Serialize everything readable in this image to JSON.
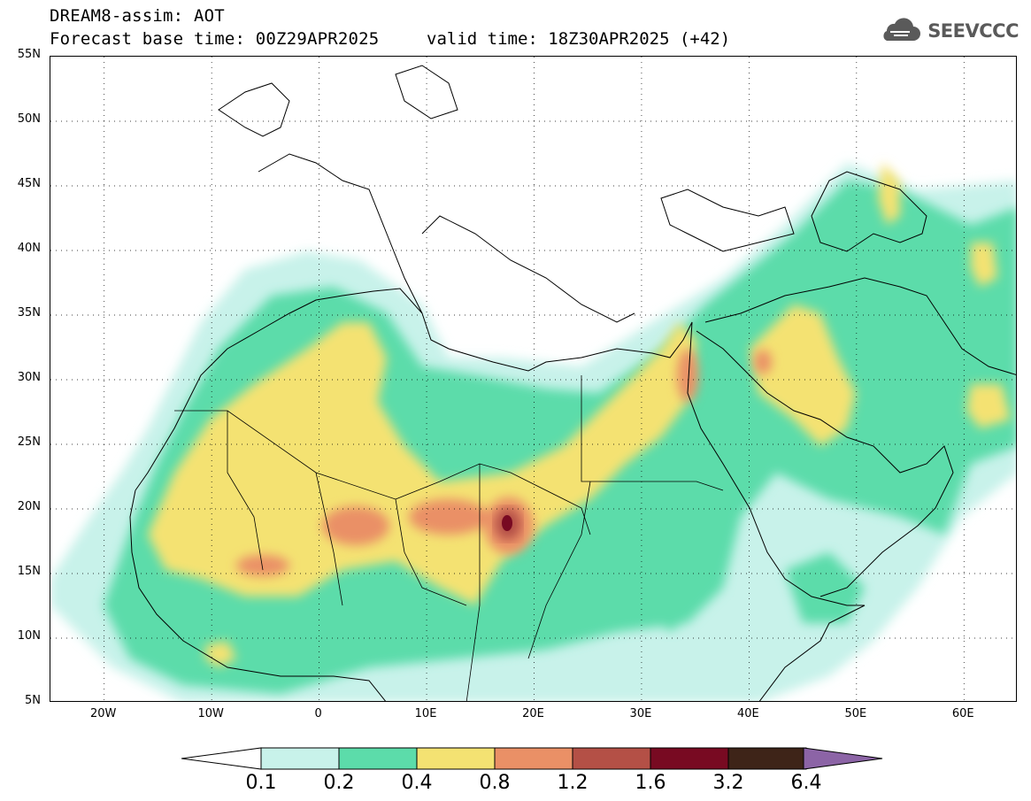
{
  "header": {
    "line1": "DREAM8-assim: AOT",
    "base_time": "Forecast base time: 00Z29APR2025",
    "valid_time": "valid time: 18Z30APR2025 (+42)"
  },
  "logo": {
    "text": "SEEVCCC",
    "icon": "cloud-icon",
    "color": "#5a5a5a"
  },
  "map": {
    "variable": "AOT",
    "lon_range": [
      -25,
      65
    ],
    "lat_range": [
      5,
      55
    ],
    "y_ticks": [
      {
        "lat": 55,
        "label": "55N"
      },
      {
        "lat": 50,
        "label": "50N"
      },
      {
        "lat": 45,
        "label": "45N"
      },
      {
        "lat": 40,
        "label": "40N"
      },
      {
        "lat": 35,
        "label": "35N"
      },
      {
        "lat": 30,
        "label": "30N"
      },
      {
        "lat": 25,
        "label": "25N"
      },
      {
        "lat": 20,
        "label": "20N"
      },
      {
        "lat": 15,
        "label": "15N"
      },
      {
        "lat": 10,
        "label": "10N"
      },
      {
        "lat": 5,
        "label": "5N"
      }
    ],
    "x_ticks": [
      {
        "lon": -20,
        "label": "20W"
      },
      {
        "lon": -10,
        "label": "10W"
      },
      {
        "lon": 0,
        "label": "0"
      },
      {
        "lon": 10,
        "label": "10E"
      },
      {
        "lon": 20,
        "label": "20E"
      },
      {
        "lon": 30,
        "label": "30E"
      },
      {
        "lon": 40,
        "label": "40E"
      },
      {
        "lon": 50,
        "label": "50E"
      },
      {
        "lon": 60,
        "label": "60E"
      }
    ],
    "grid": "dotted, every 10° lon / 5° lat"
  },
  "colorbar": {
    "labels": [
      "0.1",
      "0.2",
      "0.4",
      "0.8",
      "1.2",
      "1.6",
      "3.2",
      "6.4"
    ],
    "colors": [
      "#c8f2ea",
      "#5cdcaa",
      "#f4e272",
      "#ea9066",
      "#b45046",
      "#780a22",
      "#3e2418",
      "#8c64a6"
    ],
    "low_end": "#ffffff"
  }
}
